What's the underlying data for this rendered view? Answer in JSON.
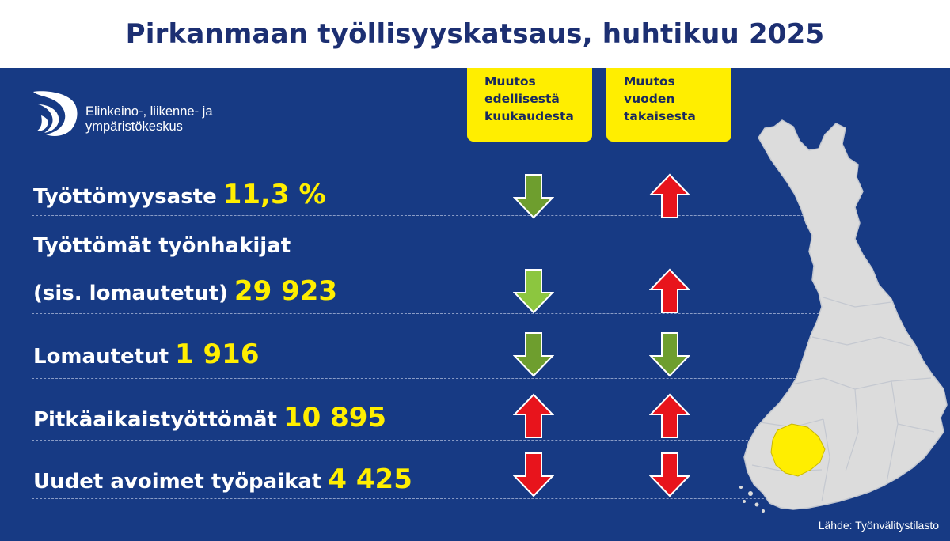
{
  "title": "Pirkanmaan työllisyyskatsaus, huhtikuu 2025",
  "logo": {
    "line1": "Elinkeino-, liikenne- ja",
    "line2": "ympäristökeskus"
  },
  "headers": {
    "monthly": [
      "Muutos",
      "edellisestä",
      "kuukaudesta"
    ],
    "yearly": [
      "Muutos",
      "vuoden",
      "takaisesta"
    ]
  },
  "rows": [
    {
      "label": "Työttömyysaste",
      "value": "11,3 %",
      "monthly": "down",
      "yearly": "up",
      "monthly_color": "#6e9e2e",
      "yearly_color": "#e8141c"
    },
    {
      "label_line1": "Työttömät työnhakijat",
      "label": "(sis. lomautetut)",
      "value": "29 923",
      "monthly": "down",
      "yearly": "up",
      "monthly_color": "#8cc63f",
      "yearly_color": "#e8141c"
    },
    {
      "label": "Lomautetut",
      "value": "1 916",
      "monthly": "down",
      "yearly": "down",
      "monthly_color": "#6e9e2e",
      "yearly_color": "#6e9e2e"
    },
    {
      "label": "Pitkäaikaistyöttömät",
      "value": "10 895",
      "monthly": "up",
      "yearly": "up",
      "monthly_color": "#e8141c",
      "yearly_color": "#e8141c"
    },
    {
      "label": "Uudet avoimet työpaikat",
      "value": "4 425",
      "monthly": "down",
      "yearly": "down",
      "monthly_color": "#e8141c",
      "yearly_color": "#e8141c"
    }
  ],
  "source": "Lähde: Työnvälitystilasto",
  "colors": {
    "background": "#173a84",
    "header_yellow": "#ffee00",
    "value_yellow": "#ffee00",
    "map_fill": "#dcdcdc",
    "highlight_region": "#ffee00"
  },
  "map_icon": "finland-map-pirkanmaa-highlight"
}
